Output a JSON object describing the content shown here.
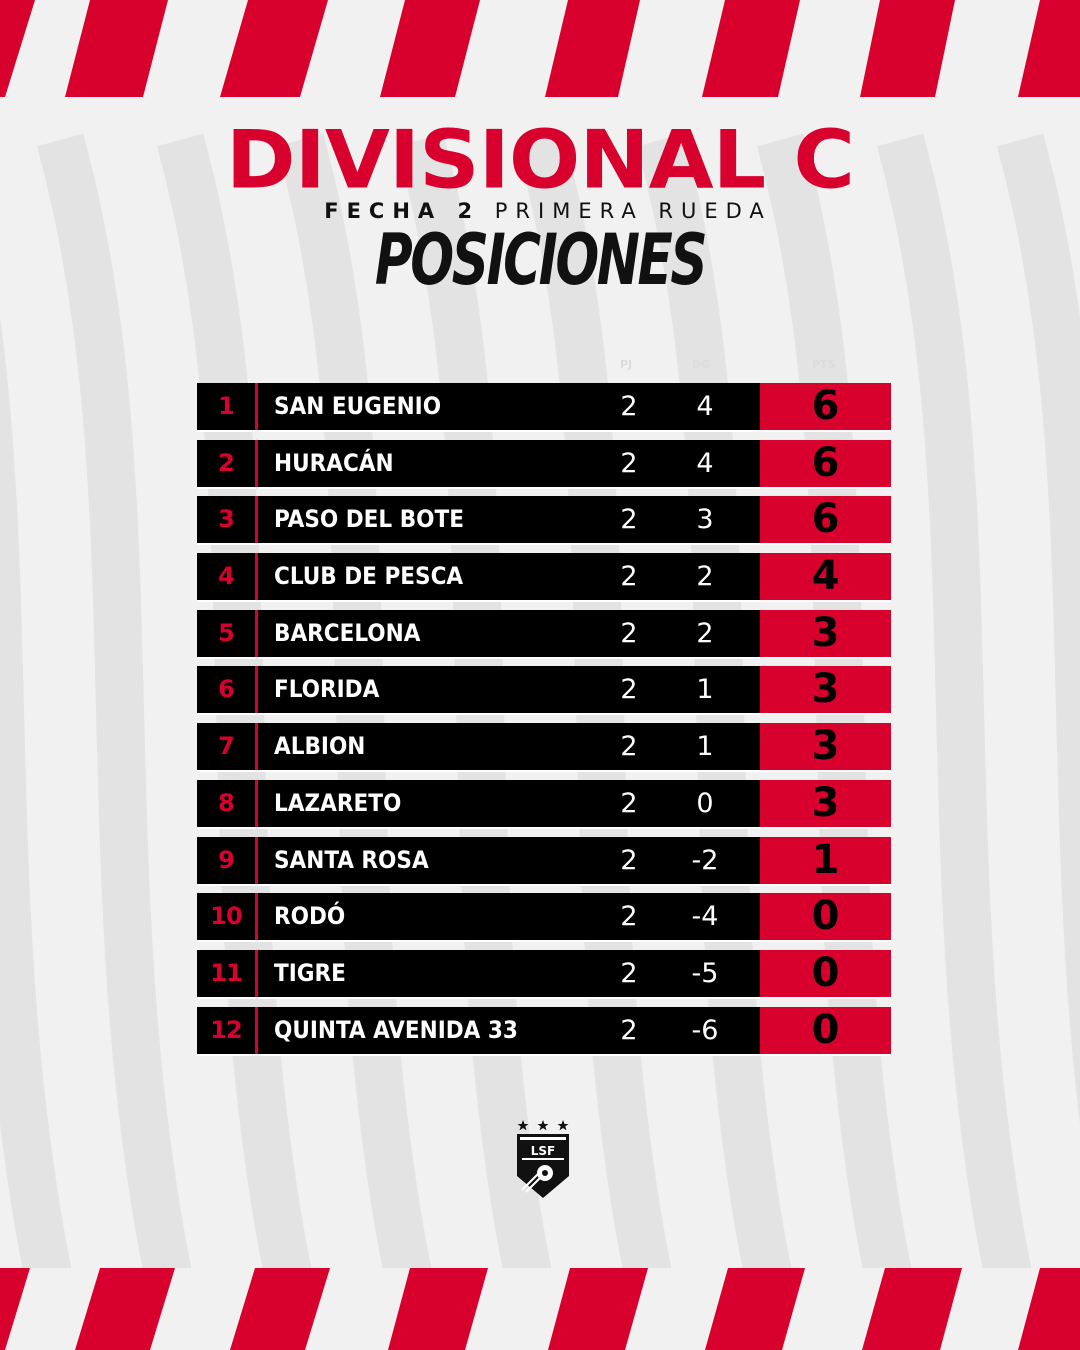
{
  "header": {
    "title": "DIVISIONAL C",
    "fecha_label": "FECHA 2",
    "rueda_label": "PRIMERA RUEDA",
    "section": "POSICIONES"
  },
  "columns": {
    "pj": "PJ",
    "dg": "DG",
    "pts": "PTS"
  },
  "standings": [
    {
      "pos": "1",
      "team": "SAN EUGENIO",
      "pj": "2",
      "dg": "4",
      "pts": "6"
    },
    {
      "pos": "2",
      "team": "HURACÁN",
      "pj": "2",
      "dg": "4",
      "pts": "6"
    },
    {
      "pos": "3",
      "team": "PASO DEL BOTE",
      "pj": "2",
      "dg": "3",
      "pts": "6"
    },
    {
      "pos": "4",
      "team": "CLUB DE PESCA",
      "pj": "2",
      "dg": "2",
      "pts": "4"
    },
    {
      "pos": "5",
      "team": "BARCELONA",
      "pj": "2",
      "dg": "2",
      "pts": "3"
    },
    {
      "pos": "6",
      "team": "FLORIDA",
      "pj": "2",
      "dg": "1",
      "pts": "3"
    },
    {
      "pos": "7",
      "team": "ALBION",
      "pj": "2",
      "dg": "1",
      "pts": "3"
    },
    {
      "pos": "8",
      "team": "LAZARETO",
      "pj": "2",
      "dg": "0",
      "pts": "3"
    },
    {
      "pos": "9",
      "team": "SANTA ROSA",
      "pj": "2",
      "dg": "-2",
      "pts": "1"
    },
    {
      "pos": "10",
      "team": "RODÓ",
      "pj": "2",
      "dg": "-4",
      "pts": "0"
    },
    {
      "pos": "11",
      "team": "TIGRE",
      "pj": "2",
      "dg": "-5",
      "pts": "0"
    },
    {
      "pos": "12",
      "team": "QUINTA AVENIDA 33",
      "pj": "2",
      "dg": "-6",
      "pts": "0"
    }
  ],
  "logo": {
    "initials": "LSF",
    "icon": "league-shield-logo"
  },
  "colors": {
    "accent": "#d8002d",
    "dark": "#000000",
    "background": "#f1f1f1",
    "wave": "#e3e3e3"
  }
}
